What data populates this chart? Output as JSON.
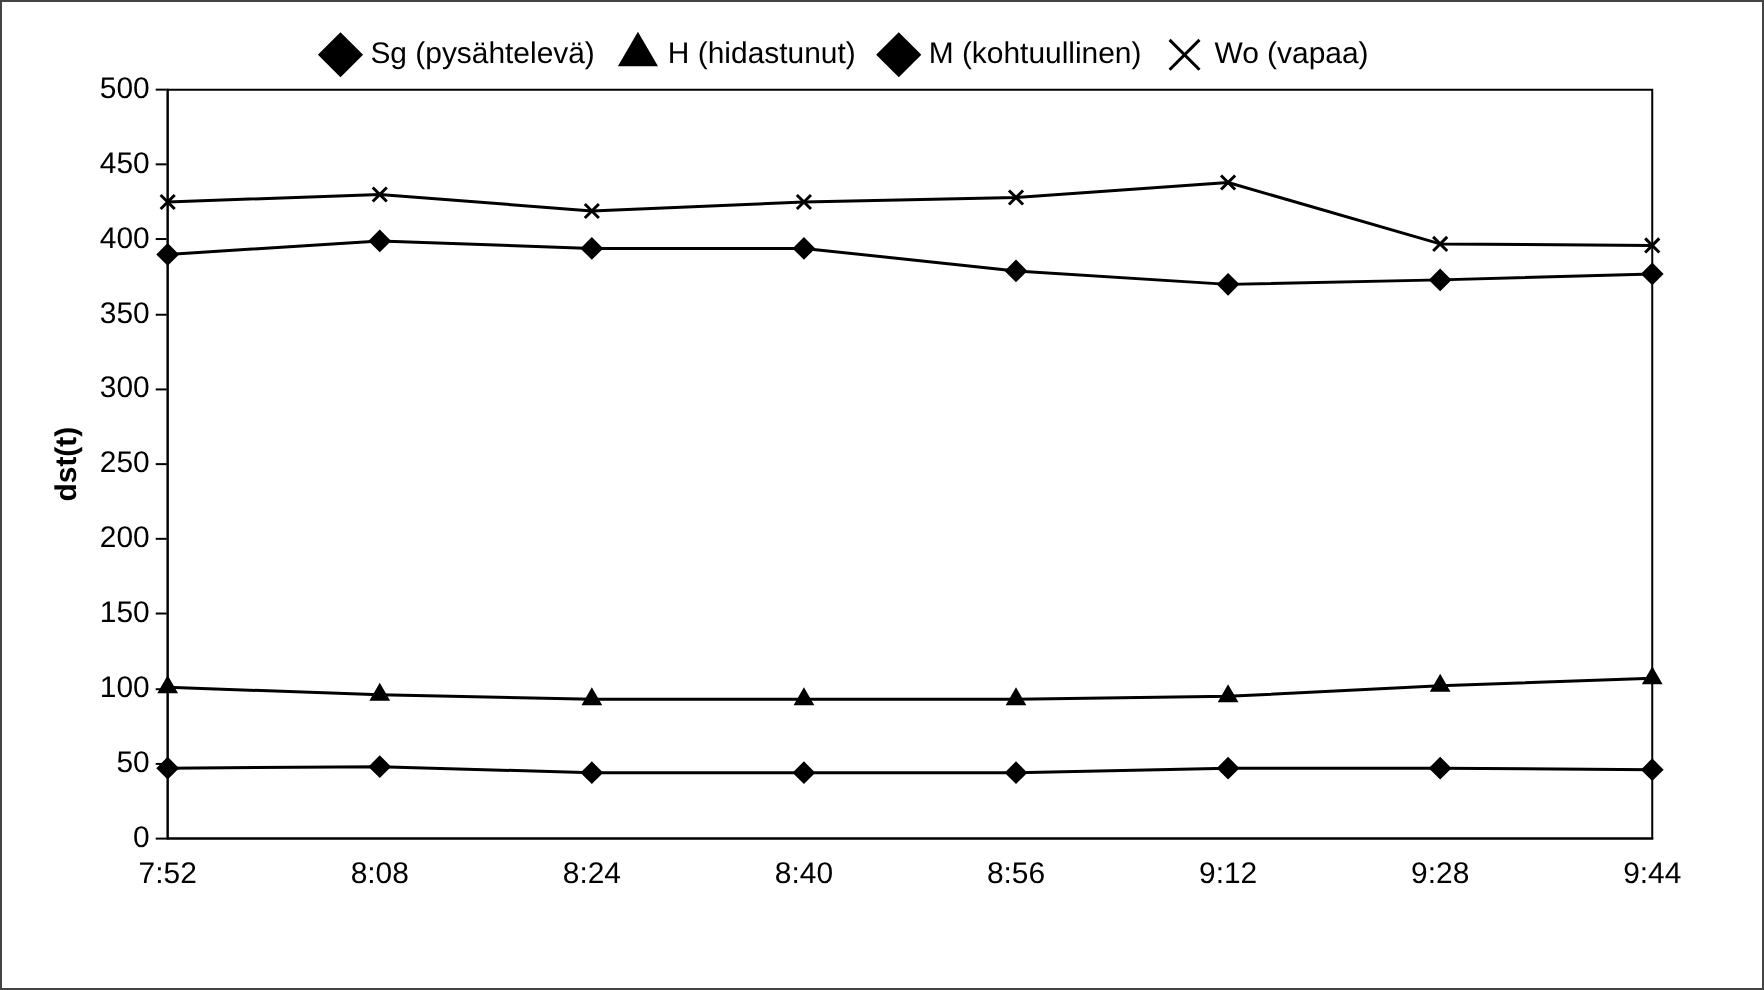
{
  "chart_data": {
    "type": "line",
    "ylabel": "dst(t)",
    "categories": [
      "7:52",
      "8:08",
      "8:24",
      "8:40",
      "8:56",
      "9:12",
      "9:28",
      "9:44"
    ],
    "series": [
      {
        "name": "Sg (pysähtelevä)",
        "color": "#000000",
        "marker": "diamond",
        "values": [
          47,
          48,
          44,
          44,
          44,
          47,
          47,
          46
        ]
      },
      {
        "name": "H (hidastunut)",
        "color": "#000000",
        "marker": "triangle",
        "values": [
          101,
          96,
          93,
          93,
          93,
          95,
          102,
          107
        ]
      },
      {
        "name": "M (kohtuullinen)",
        "color": "#000000",
        "marker": "diamond",
        "values": [
          390,
          399,
          394,
          394,
          379,
          370,
          373,
          377
        ]
      },
      {
        "name": "Wo (vapaa)",
        "color": "#000000",
        "marker": "cross",
        "values": [
          425,
          430,
          419,
          425,
          428,
          438,
          397,
          396
        ]
      }
    ],
    "ylim": [
      0,
      500
    ],
    "yticks": [
      0,
      50,
      100,
      150,
      200,
      250,
      300,
      350,
      400,
      450,
      500
    ],
    "grid": false,
    "legend": "top",
    "line_style": "solid"
  }
}
